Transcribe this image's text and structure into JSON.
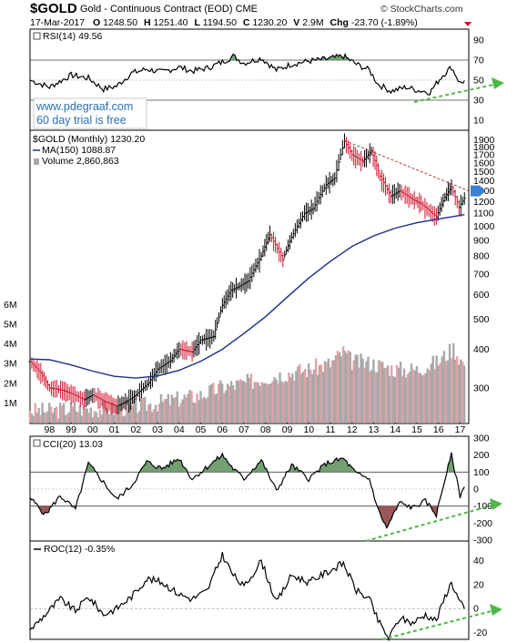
{
  "header": {
    "ticker": "$GOLD",
    "description": "Gold - Continuous Contract (EOD)",
    "exchange": "CME",
    "watermark": "© StockCharts.com",
    "date": "17-Mar-2017",
    "open_label": "O",
    "open_value": "1248.50",
    "high_label": "H",
    "high_value": "1251.40",
    "low_label": "L",
    "low_value": "1194.50",
    "close_label": "C",
    "close_value": "1230.20",
    "volume_label": "V",
    "volume_value": "2.9M",
    "change_label": "Chg",
    "change_value": "-23.70 (-1.89%)"
  },
  "promo": {
    "line1": "www.pdegraaf.com",
    "line2": "60 day trial is free"
  },
  "colors": {
    "up": "#000000",
    "down": "#d0102c",
    "ma": "#1a2f8c",
    "vol_up": "#a9a9a9",
    "vol_down": "#e8a0a8",
    "positive_fill": "#5b8f5b",
    "negative_fill": "#8a3a3a",
    "trend_arrow": "#4fb848",
    "resistance": "#b0302a",
    "marker": "#3a7fd8"
  },
  "chart_data": [
    {
      "type": "line",
      "panel": "rsi",
      "label": "RSI(14)",
      "current": "49.56",
      "ylim": [
        0,
        100
      ],
      "y_ticks": [
        "90",
        "70",
        "50",
        "30",
        "10"
      ],
      "y_tick_values": [
        90,
        70,
        50,
        30,
        10
      ],
      "reference_lines": [
        70,
        30
      ],
      "x": [
        1997.1,
        1998.0,
        1999.0,
        1999.8,
        2000.5,
        2001.1,
        2001.8,
        2002.5,
        2003.2,
        2004.0,
        2004.6,
        2005.3,
        2006.0,
        2006.5,
        2007.0,
        2007.8,
        2008.5,
        2009.2,
        2010.0,
        2010.8,
        2011.6,
        2012.2,
        2012.8,
        2013.2,
        2013.8,
        2014.5,
        2015.0,
        2015.6,
        2016.2,
        2016.6,
        2017.0,
        2017.2
      ],
      "y": [
        50,
        43,
        55,
        52,
        41,
        44,
        57,
        61,
        58,
        63,
        59,
        62,
        68,
        74,
        67,
        72,
        60,
        66,
        69,
        71,
        74,
        66,
        60,
        46,
        39,
        43,
        40,
        38,
        55,
        63,
        47,
        49.56
      ]
    },
    {
      "type": "bar",
      "panel": "price",
      "label": "$GOLD (Monthly)",
      "current": "1230.20",
      "ma_label": "MA(150)",
      "ma_current": "1088.87",
      "volume_label": "Volume",
      "volume_current": "2,860,863",
      "scale": "log",
      "ylim": [
        235,
        2000
      ],
      "y_ticks": [
        "1900",
        "1800",
        "1700",
        "1600",
        "1500",
        "1400",
        "1300",
        "1200",
        "1100",
        "1000",
        "900",
        "800",
        "700",
        "600",
        "500",
        "400",
        "300"
      ],
      "y_tick_values": [
        1900,
        1800,
        1700,
        1600,
        1500,
        1400,
        1300,
        1200,
        1100,
        1000,
        900,
        800,
        700,
        600,
        500,
        400,
        300
      ],
      "x_ticks": [
        "98",
        "99",
        "00",
        "01",
        "02",
        "03",
        "04",
        "05",
        "06",
        "07",
        "08",
        "09",
        "10",
        "11",
        "12",
        "13",
        "14",
        "15",
        "16",
        "17"
      ],
      "x_tick_values": [
        1998,
        1999,
        2000,
        2001,
        2002,
        2003,
        2004,
        2005,
        2006,
        2007,
        2008,
        2009,
        2010,
        2011,
        2012,
        2013,
        2014,
        2015,
        2016,
        2017
      ],
      "price_x": [
        1997.1,
        1997.6,
        1998.0,
        1998.6,
        1999.0,
        1999.6,
        2000.0,
        2000.6,
        2001.1,
        2001.6,
        2002.0,
        2002.6,
        2003.0,
        2003.6,
        2004.0,
        2004.6,
        2005.0,
        2005.6,
        2006.0,
        2006.4,
        2006.8,
        2007.2,
        2007.8,
        2008.2,
        2008.8,
        2009.2,
        2009.8,
        2010.2,
        2010.8,
        2011.2,
        2011.65,
        2012.0,
        2012.5,
        2012.9,
        2013.3,
        2013.8,
        2014.2,
        2014.8,
        2015.2,
        2015.9,
        2016.3,
        2016.6,
        2016.95,
        2017.2
      ],
      "price_y": [
        365,
        335,
        300,
        295,
        288,
        275,
        285,
        270,
        262,
        272,
        285,
        312,
        345,
        368,
        400,
        392,
        428,
        440,
        555,
        620,
        640,
        665,
        800,
        940,
        780,
        920,
        1100,
        1140,
        1360,
        1430,
        1880,
        1700,
        1620,
        1750,
        1450,
        1250,
        1300,
        1220,
        1180,
        1070,
        1240,
        1340,
        1150,
        1230.2
      ],
      "ma_x": [
        1997.1,
        1998.0,
        1999.0,
        2000.0,
        2001.0,
        2002.0,
        2003.0,
        2004.0,
        2005.0,
        2006.0,
        2007.0,
        2008.0,
        2009.0,
        2010.0,
        2011.0,
        2012.0,
        2013.0,
        2014.0,
        2015.0,
        2016.0,
        2017.2
      ],
      "ma_y": [
        372,
        370,
        356,
        340,
        327,
        323,
        328,
        342,
        366,
        400,
        450,
        510,
        590,
        680,
        770,
        860,
        930,
        985,
        1025,
        1055,
        1088.87
      ],
      "volume_ylim": [
        0,
        6.2
      ],
      "volume_ticks": [
        "6M",
        "5M",
        "4M",
        "3M",
        "2M",
        "1M"
      ],
      "volume_tick_values": [
        6,
        5,
        4,
        3,
        2,
        1
      ],
      "volume_x": [
        1997.1,
        1998.0,
        1999.0,
        2000.0,
        2001.0,
        2002.0,
        2003.0,
        2004.0,
        2005.0,
        2006.0,
        2007.0,
        2008.0,
        2009.0,
        2010.0,
        2011.0,
        2011.6,
        2012.0,
        2013.0,
        2014.0,
        2015.0,
        2016.0,
        2016.7,
        2017.2
      ],
      "volume_y": [
        0.6,
        0.6,
        0.7,
        0.7,
        0.7,
        0.8,
        1.0,
        1.2,
        1.4,
        1.8,
        2.0,
        2.3,
        2.5,
        2.7,
        3.0,
        3.6,
        3.1,
        3.0,
        2.7,
        2.7,
        3.1,
        3.8,
        2.9
      ]
    },
    {
      "type": "line",
      "panel": "cci",
      "label": "CCI(20)",
      "current": "13.03",
      "ylim": [
        -300,
        300
      ],
      "y_ticks": [
        "300",
        "200",
        "100",
        "0",
        "-100",
        "-200",
        "-300"
      ],
      "y_tick_values": [
        300,
        200,
        100,
        0,
        -100,
        -200,
        -300
      ],
      "reference_lines": [
        100,
        -100
      ],
      "x": [
        1997.1,
        1997.8,
        1998.5,
        1999.2,
        1999.8,
        2000.5,
        2001.1,
        2001.8,
        2002.5,
        2003.2,
        2004.0,
        2004.6,
        2005.3,
        2006.0,
        2006.5,
        2007.0,
        2007.8,
        2008.5,
        2009.2,
        2010.0,
        2010.8,
        2011.6,
        2012.2,
        2012.8,
        2013.2,
        2013.6,
        2014.2,
        2014.8,
        2015.4,
        2015.9,
        2016.3,
        2016.6,
        2017.0,
        2017.2
      ],
      "y": [
        -50,
        -150,
        -40,
        -120,
        150,
        40,
        -60,
        20,
        160,
        120,
        180,
        60,
        130,
        200,
        120,
        60,
        170,
        -10,
        140,
        60,
        150,
        180,
        90,
        60,
        -120,
        -230,
        -80,
        -110,
        -70,
        -150,
        60,
        200,
        -40,
        13.03
      ]
    },
    {
      "type": "line",
      "panel": "roc",
      "label": "ROC(12)",
      "current": "-0.35%",
      "ylim": [
        -25,
        55
      ],
      "y_ticks": [
        "40",
        "20",
        "0",
        "-20"
      ],
      "y_tick_values": [
        40,
        20,
        0,
        -20
      ],
      "reference_lines": [
        0
      ],
      "x": [
        1997.1,
        1997.8,
        1998.5,
        1999.2,
        1999.8,
        2000.5,
        2001.1,
        2001.8,
        2002.5,
        2003.2,
        2004.0,
        2004.6,
        2005.3,
        2006.0,
        2006.5,
        2007.0,
        2007.8,
        2008.5,
        2009.2,
        2010.0,
        2010.8,
        2011.6,
        2012.2,
        2012.8,
        2013.2,
        2013.7,
        2014.2,
        2014.8,
        2015.4,
        2015.9,
        2016.3,
        2016.6,
        2017.0,
        2017.2
      ],
      "y": [
        -18,
        -5,
        8,
        -2,
        10,
        -5,
        0,
        10,
        25,
        22,
        12,
        8,
        15,
        45,
        28,
        18,
        40,
        5,
        28,
        22,
        30,
        38,
        15,
        8,
        -10,
        -25,
        -8,
        -12,
        -5,
        -10,
        10,
        22,
        5,
        -0.35
      ]
    }
  ]
}
